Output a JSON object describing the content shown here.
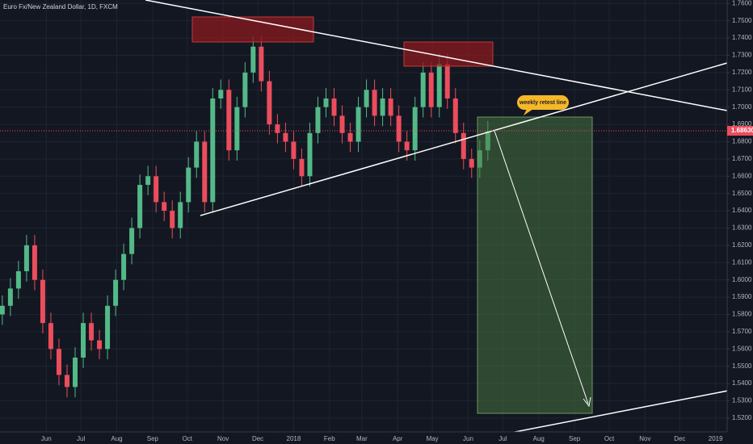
{
  "chart_data": {
    "type": "candlestick",
    "title": "Euro Fx/New Zealand Dollar, 1D, FXCM",
    "annotation": "weekly retest line",
    "price_line": {
      "value": 1.6863,
      "label": "1.68630"
    },
    "up_color": "#53b987",
    "down_color": "#eb4d5c",
    "x": [
      -7,
      0,
      7,
      14,
      21,
      28,
      35,
      42,
      49,
      56,
      63,
      70,
      77,
      84,
      91,
      98,
      105,
      112,
      119,
      126,
      133,
      140,
      147,
      154,
      161,
      168,
      175,
      182,
      189,
      196,
      203,
      210,
      217,
      224,
      231,
      238,
      245,
      252,
      259,
      266,
      273,
      280,
      287,
      294,
      301,
      308,
      315,
      322,
      329,
      336,
      343,
      350,
      357,
      364,
      371,
      378,
      385,
      392,
      399,
      406,
      413
    ],
    "open": [
      1.58,
      1.585,
      1.595,
      1.605,
      1.62,
      1.6,
      1.575,
      1.56,
      1.545,
      1.538,
      1.555,
      1.575,
      1.565,
      1.56,
      1.585,
      1.6,
      1.615,
      1.63,
      1.655,
      1.66,
      1.645,
      1.64,
      1.63,
      1.645,
      1.665,
      1.68,
      1.645,
      1.705,
      1.71,
      1.675,
      1.7,
      1.72,
      1.735,
      1.715,
      1.69,
      1.685,
      1.68,
      1.67,
      1.66,
      1.685,
      1.7,
      1.705,
      1.695,
      1.685,
      1.68,
      1.7,
      1.71,
      1.695,
      1.705,
      1.695,
      1.68,
      1.675,
      1.7,
      1.72,
      1.7,
      1.725,
      1.705,
      1.685,
      1.67,
      1.665,
      1.675
    ],
    "high": [
      1.591,
      1.601,
      1.611,
      1.626,
      1.626,
      1.606,
      1.581,
      1.566,
      1.551,
      1.561,
      1.581,
      1.581,
      1.571,
      1.591,
      1.606,
      1.621,
      1.636,
      1.661,
      1.666,
      1.666,
      1.651,
      1.646,
      1.651,
      1.671,
      1.686,
      1.686,
      1.711,
      1.716,
      1.716,
      1.706,
      1.726,
      1.741,
      1.741,
      1.721,
      1.696,
      1.691,
      1.686,
      1.676,
      1.691,
      1.706,
      1.711,
      1.711,
      1.701,
      1.691,
      1.706,
      1.716,
      1.716,
      1.711,
      1.711,
      1.701,
      1.686,
      1.706,
      1.726,
      1.726,
      1.731,
      1.731,
      1.711,
      1.691,
      1.676,
      1.681,
      1.692
    ],
    "low": [
      1.574,
      1.579,
      1.589,
      1.599,
      1.594,
      1.569,
      1.554,
      1.539,
      1.532,
      1.532,
      1.549,
      1.559,
      1.554,
      1.554,
      1.579,
      1.594,
      1.609,
      1.624,
      1.649,
      1.639,
      1.634,
      1.624,
      1.624,
      1.639,
      1.659,
      1.639,
      1.639,
      1.699,
      1.669,
      1.669,
      1.694,
      1.714,
      1.709,
      1.684,
      1.679,
      1.674,
      1.664,
      1.654,
      1.654,
      1.679,
      1.694,
      1.689,
      1.679,
      1.674,
      1.674,
      1.694,
      1.689,
      1.689,
      1.689,
      1.674,
      1.669,
      1.669,
      1.694,
      1.694,
      1.694,
      1.699,
      1.679,
      1.664,
      1.659,
      1.659,
      1.669
    ],
    "close": [
      1.585,
      1.595,
      1.605,
      1.62,
      1.6,
      1.575,
      1.56,
      1.545,
      1.538,
      1.555,
      1.575,
      1.565,
      1.56,
      1.585,
      1.6,
      1.615,
      1.63,
      1.655,
      1.66,
      1.645,
      1.64,
      1.63,
      1.645,
      1.665,
      1.68,
      1.645,
      1.705,
      1.71,
      1.675,
      1.7,
      1.72,
      1.735,
      1.715,
      1.69,
      1.685,
      1.68,
      1.67,
      1.66,
      1.685,
      1.7,
      1.705,
      1.695,
      1.685,
      1.68,
      1.7,
      1.71,
      1.695,
      1.705,
      1.695,
      1.68,
      1.675,
      1.7,
      1.72,
      1.7,
      1.725,
      1.705,
      1.685,
      1.67,
      1.665,
      1.675,
      1.686
    ],
    "xlim": [
      -9,
      620
    ],
    "xticks": [
      {
        "value": 31,
        "label": "Jun"
      },
      {
        "value": 61,
        "label": "Jul"
      },
      {
        "value": 92,
        "label": "Aug"
      },
      {
        "value": 123,
        "label": "Sep"
      },
      {
        "value": 153,
        "label": "Oct"
      },
      {
        "value": 184,
        "label": "Nov"
      },
      {
        "value": 214,
        "label": "Dec"
      },
      {
        "value": 245,
        "label": "2018"
      },
      {
        "value": 276,
        "label": "Feb"
      },
      {
        "value": 304,
        "label": "Mar"
      },
      {
        "value": 335,
        "label": "Apr"
      },
      {
        "value": 365,
        "label": "May"
      },
      {
        "value": 396,
        "label": "Jun"
      },
      {
        "value": 426,
        "label": "Jul"
      },
      {
        "value": 457,
        "label": "Aug"
      },
      {
        "value": 488,
        "label": "Sep"
      },
      {
        "value": 518,
        "label": "Oct"
      },
      {
        "value": 549,
        "label": "Nov"
      },
      {
        "value": 579,
        "label": "Dec"
      },
      {
        "value": 610,
        "label": "2019"
      }
    ],
    "ylim": [
      1.512,
      1.762
    ],
    "yticks": [
      {
        "value": 1.52,
        "label": "1.5200"
      },
      {
        "value": 1.53,
        "label": "1.5300"
      },
      {
        "value": 1.54,
        "label": "1.5400"
      },
      {
        "value": 1.55,
        "label": "1.5500"
      },
      {
        "value": 1.56,
        "label": "1.5600"
      },
      {
        "value": 1.57,
        "label": "1.5700"
      },
      {
        "value": 1.58,
        "label": "1.5800"
      },
      {
        "value": 1.59,
        "label": "1.5900"
      },
      {
        "value": 1.6,
        "label": "1.6000"
      },
      {
        "value": 1.61,
        "label": "1.6100"
      },
      {
        "value": 1.62,
        "label": "1.6200"
      },
      {
        "value": 1.63,
        "label": "1.6300"
      },
      {
        "value": 1.64,
        "label": "1.6400"
      },
      {
        "value": 1.65,
        "label": "1.6500"
      },
      {
        "value": 1.66,
        "label": "1.6600"
      },
      {
        "value": 1.67,
        "label": "1.6700"
      },
      {
        "value": 1.68,
        "label": "1.6800"
      },
      {
        "value": 1.69,
        "label": "1.6900"
      },
      {
        "value": 1.7,
        "label": "1.7000"
      },
      {
        "value": 1.71,
        "label": "1.7100"
      },
      {
        "value": 1.72,
        "label": "1.7200"
      },
      {
        "value": 1.73,
        "label": "1.7300"
      },
      {
        "value": 1.74,
        "label": "1.7400"
      },
      {
        "value": 1.75,
        "label": "1.7500"
      },
      {
        "value": 1.76,
        "label": "1.7600"
      }
    ],
    "grid": true
  }
}
